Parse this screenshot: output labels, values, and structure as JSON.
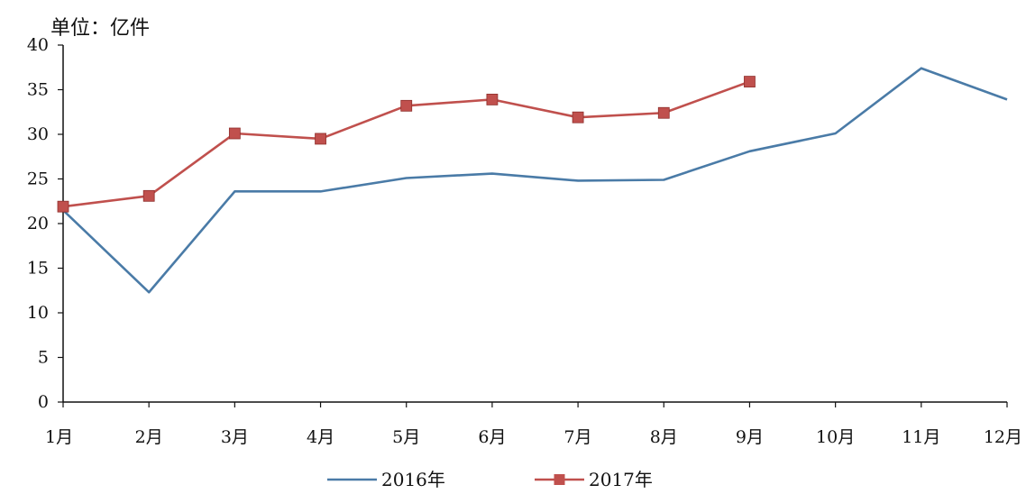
{
  "chart_data": {
    "type": "line",
    "unit_label": "单位：亿件",
    "categories": [
      "1月",
      "2月",
      "3月",
      "4月",
      "5月",
      "6月",
      "7月",
      "8月",
      "9月",
      "10月",
      "11月",
      "12月"
    ],
    "ylim": [
      0,
      40
    ],
    "yticks": [
      0,
      5,
      10,
      15,
      20,
      25,
      30,
      35,
      40
    ],
    "grid": false,
    "legend_position": "bottom",
    "series": [
      {
        "name": "2016年",
        "color": "#4a7ba7",
        "marker": "none",
        "values": [
          21.5,
          12.3,
          23.6,
          23.6,
          25.1,
          25.6,
          24.8,
          24.9,
          28.1,
          30.1,
          37.4,
          33.9
        ]
      },
      {
        "name": "2017年",
        "color": "#c0504d",
        "marker": "square",
        "values": [
          21.9,
          23.1,
          30.1,
          29.5,
          33.2,
          33.9,
          31.9,
          32.4,
          35.9,
          null,
          null,
          null
        ]
      }
    ]
  }
}
